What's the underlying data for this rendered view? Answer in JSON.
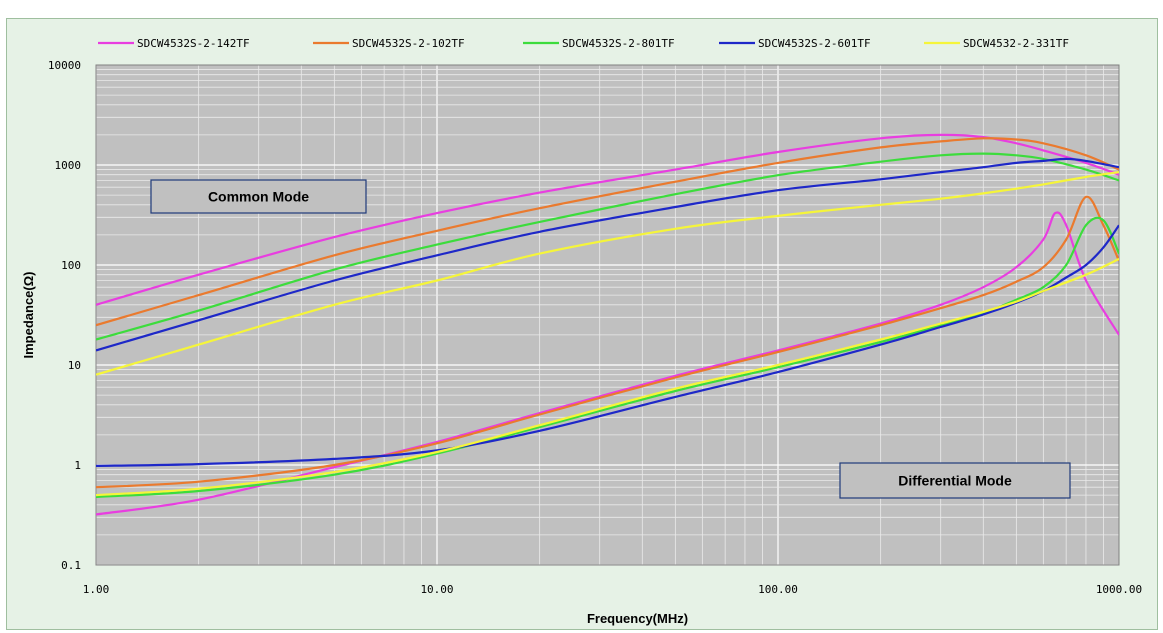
{
  "chart_data": {
    "type": "line",
    "xlabel": "Frequency(MHz)",
    "ylabel": "Impedance(Ω)",
    "xscale": "log",
    "yscale": "log",
    "xlim": [
      1,
      1000
    ],
    "ylim": [
      0.1,
      10000
    ],
    "x_ticks": [
      "1.00",
      "10.00",
      "100.00",
      "1000.00"
    ],
    "y_ticks": [
      "0.1",
      "1",
      "10",
      "100",
      "1000",
      "10000"
    ],
    "grid": true,
    "legend_position": "top",
    "background_color": "#c0c0c0",
    "annotations": [
      {
        "text": "Common Mode"
      },
      {
        "text": "Differential Mode"
      }
    ],
    "series": [
      {
        "name": "SDCW4532S-2-142TF",
        "color": "#e83ee0",
        "common_mode": {
          "x": [
            1,
            2,
            5,
            10,
            20,
            50,
            100,
            200,
            300,
            400,
            500,
            600,
            800,
            1000
          ],
          "y": [
            40,
            80,
            190,
            330,
            530,
            900,
            1350,
            1850,
            2000,
            1900,
            1650,
            1400,
            1050,
            800
          ]
        },
        "differential_mode": {
          "x": [
            1,
            2,
            5,
            10,
            20,
            50,
            100,
            200,
            300,
            400,
            500,
            600,
            650,
            700,
            800,
            1000
          ],
          "y": [
            0.32,
            0.45,
            0.95,
            1.7,
            3.3,
            7.8,
            14,
            26,
            40,
            60,
            95,
            180,
            330,
            250,
            70,
            20
          ]
        }
      },
      {
        "name": "SDCW4532S-2-102TF",
        "color": "#ea7a2e",
        "common_mode": {
          "x": [
            1,
            2,
            5,
            10,
            20,
            50,
            100,
            200,
            300,
            400,
            500,
            600,
            800,
            1000
          ],
          "y": [
            25,
            50,
            125,
            220,
            370,
            680,
            1050,
            1500,
            1720,
            1850,
            1800,
            1650,
            1250,
            900
          ]
        },
        "differential_mode": {
          "x": [
            1,
            2,
            5,
            10,
            20,
            50,
            100,
            200,
            300,
            400,
            500,
            600,
            700,
            800,
            900,
            1000
          ],
          "y": [
            0.6,
            0.68,
            1.0,
            1.65,
            3.2,
            7.5,
            13.5,
            25,
            37,
            50,
            68,
            95,
            180,
            480,
            250,
            110
          ]
        }
      },
      {
        "name": "SDCW4532S-2-801TF",
        "color": "#3cdc3c",
        "common_mode": {
          "x": [
            1,
            2,
            5,
            10,
            20,
            50,
            100,
            200,
            300,
            400,
            500,
            600,
            800,
            1000
          ],
          "y": [
            18,
            35,
            90,
            160,
            270,
            510,
            790,
            1080,
            1250,
            1300,
            1250,
            1150,
            900,
            700
          ]
        },
        "differential_mode": {
          "x": [
            1,
            2,
            5,
            10,
            20,
            50,
            100,
            200,
            300,
            400,
            500,
            600,
            700,
            800,
            900,
            1000
          ],
          "y": [
            0.48,
            0.55,
            0.8,
            1.3,
            2.4,
            5.5,
            9.5,
            17,
            25,
            33,
            45,
            60,
            100,
            250,
            280,
            130
          ]
        }
      },
      {
        "name": "SDCW4532S-2-601TF",
        "color": "#1e28c8",
        "common_mode": {
          "x": [
            1,
            2,
            5,
            10,
            20,
            50,
            100,
            200,
            300,
            400,
            500,
            600,
            700,
            800,
            1000
          ],
          "y": [
            14,
            28,
            70,
            125,
            215,
            380,
            560,
            720,
            850,
            950,
            1050,
            1100,
            1150,
            1100,
            950
          ]
        },
        "differential_mode": {
          "x": [
            1,
            2,
            5,
            10,
            20,
            50,
            100,
            200,
            300,
            400,
            500,
            600,
            700,
            800,
            900,
            1000
          ],
          "y": [
            0.98,
            1.02,
            1.15,
            1.4,
            2.2,
            4.8,
            8.5,
            16,
            24,
            32,
            42,
            55,
            75,
            100,
            150,
            250
          ]
        }
      },
      {
        "name": "SDCW4532-2-331TF",
        "color": "#f5f53a",
        "common_mode": {
          "x": [
            1,
            2,
            5,
            10,
            20,
            50,
            100,
            200,
            300,
            400,
            500,
            600,
            800,
            1000
          ],
          "y": [
            8,
            16,
            40,
            70,
            130,
            230,
            310,
            400,
            460,
            520,
            580,
            640,
            760,
            850
          ]
        },
        "differential_mode": {
          "x": [
            1,
            2,
            5,
            10,
            20,
            50,
            100,
            200,
            300,
            400,
            500,
            600,
            800,
            1000
          ],
          "y": [
            0.5,
            0.58,
            0.85,
            1.35,
            2.5,
            5.8,
            10,
            18,
            26,
            34,
            43,
            55,
            80,
            115
          ]
        }
      }
    ]
  }
}
